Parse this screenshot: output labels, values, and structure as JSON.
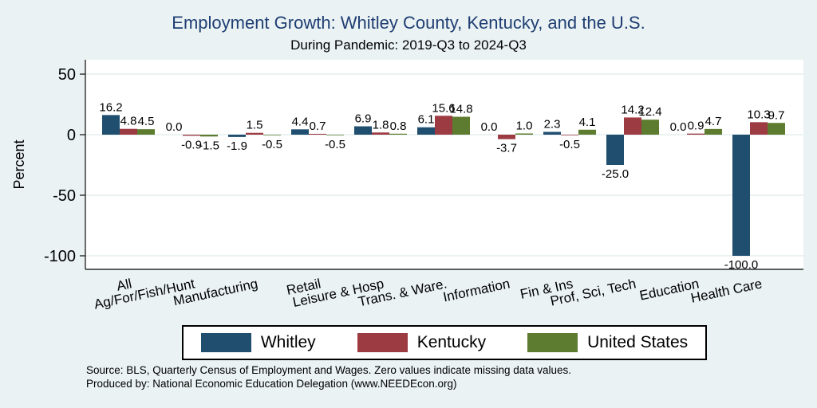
{
  "title": "Employment Growth: Whitley County, Kentucky, and the U.S.",
  "subtitle": "During Pandemic: 2019-Q3 to 2024-Q3",
  "colors": {
    "background": "#eaf2f3",
    "plot_background": "#ffffff",
    "title_text": "#1f3e73",
    "axis": "#2b2b2b",
    "gridline": "#dfe9ea",
    "whitley": "#1f4e6f",
    "kentucky": "#9d3b43",
    "united_states": "#5d7c30"
  },
  "chart_data": {
    "type": "bar",
    "title": "Employment Growth: Whitley County, Kentucky, and the U.S.",
    "subtitle": "During Pandemic: 2019-Q3 to 2024-Q3",
    "xlabel": "",
    "ylabel": "Percent",
    "yticks": [
      50,
      0,
      -50,
      -100
    ],
    "ylim": [
      -112,
      62
    ],
    "grid": true,
    "legend_position": "bottom",
    "bar_value_labels": true,
    "categories": [
      "All",
      "Ag/For/Fish/Hunt",
      "Manufacturing",
      "Retail",
      "Leisure & Hosp",
      "Trans. & Ware.",
      "Information",
      "Fin & Ins",
      "Prof, Sci, Tech",
      "Education",
      "Health Care"
    ],
    "series": [
      {
        "name": "Whitley",
        "color": "#1f4e6f",
        "values": [
          16.2,
          0.0,
          -1.9,
          4.4,
          6.9,
          6.1,
          0.0,
          2.3,
          -25.0,
          0.0,
          -100.0
        ]
      },
      {
        "name": "Kentucky",
        "color": "#9d3b43",
        "values": [
          4.8,
          -0.9,
          1.5,
          0.7,
          1.8,
          15.6,
          -3.7,
          -0.5,
          14.2,
          0.9,
          10.3
        ]
      },
      {
        "name": "United States",
        "color": "#5d7c30",
        "values": [
          4.5,
          -1.5,
          -0.5,
          -0.5,
          0.8,
          14.8,
          1.0,
          4.1,
          12.4,
          4.7,
          9.7
        ]
      }
    ]
  },
  "legend": {
    "items": [
      {
        "label": "Whitley",
        "color": "#1f4e6f"
      },
      {
        "label": "Kentucky",
        "color": "#9d3b43"
      },
      {
        "label": "United States",
        "color": "#5d7c30"
      }
    ]
  },
  "footer": {
    "source": "Source: BLS, Quarterly Census of Employment and Wages. Zero values indicate missing data values.",
    "produced_by": "Produced by: National Economic Education Delegation (www.NEEDEcon.org)"
  }
}
